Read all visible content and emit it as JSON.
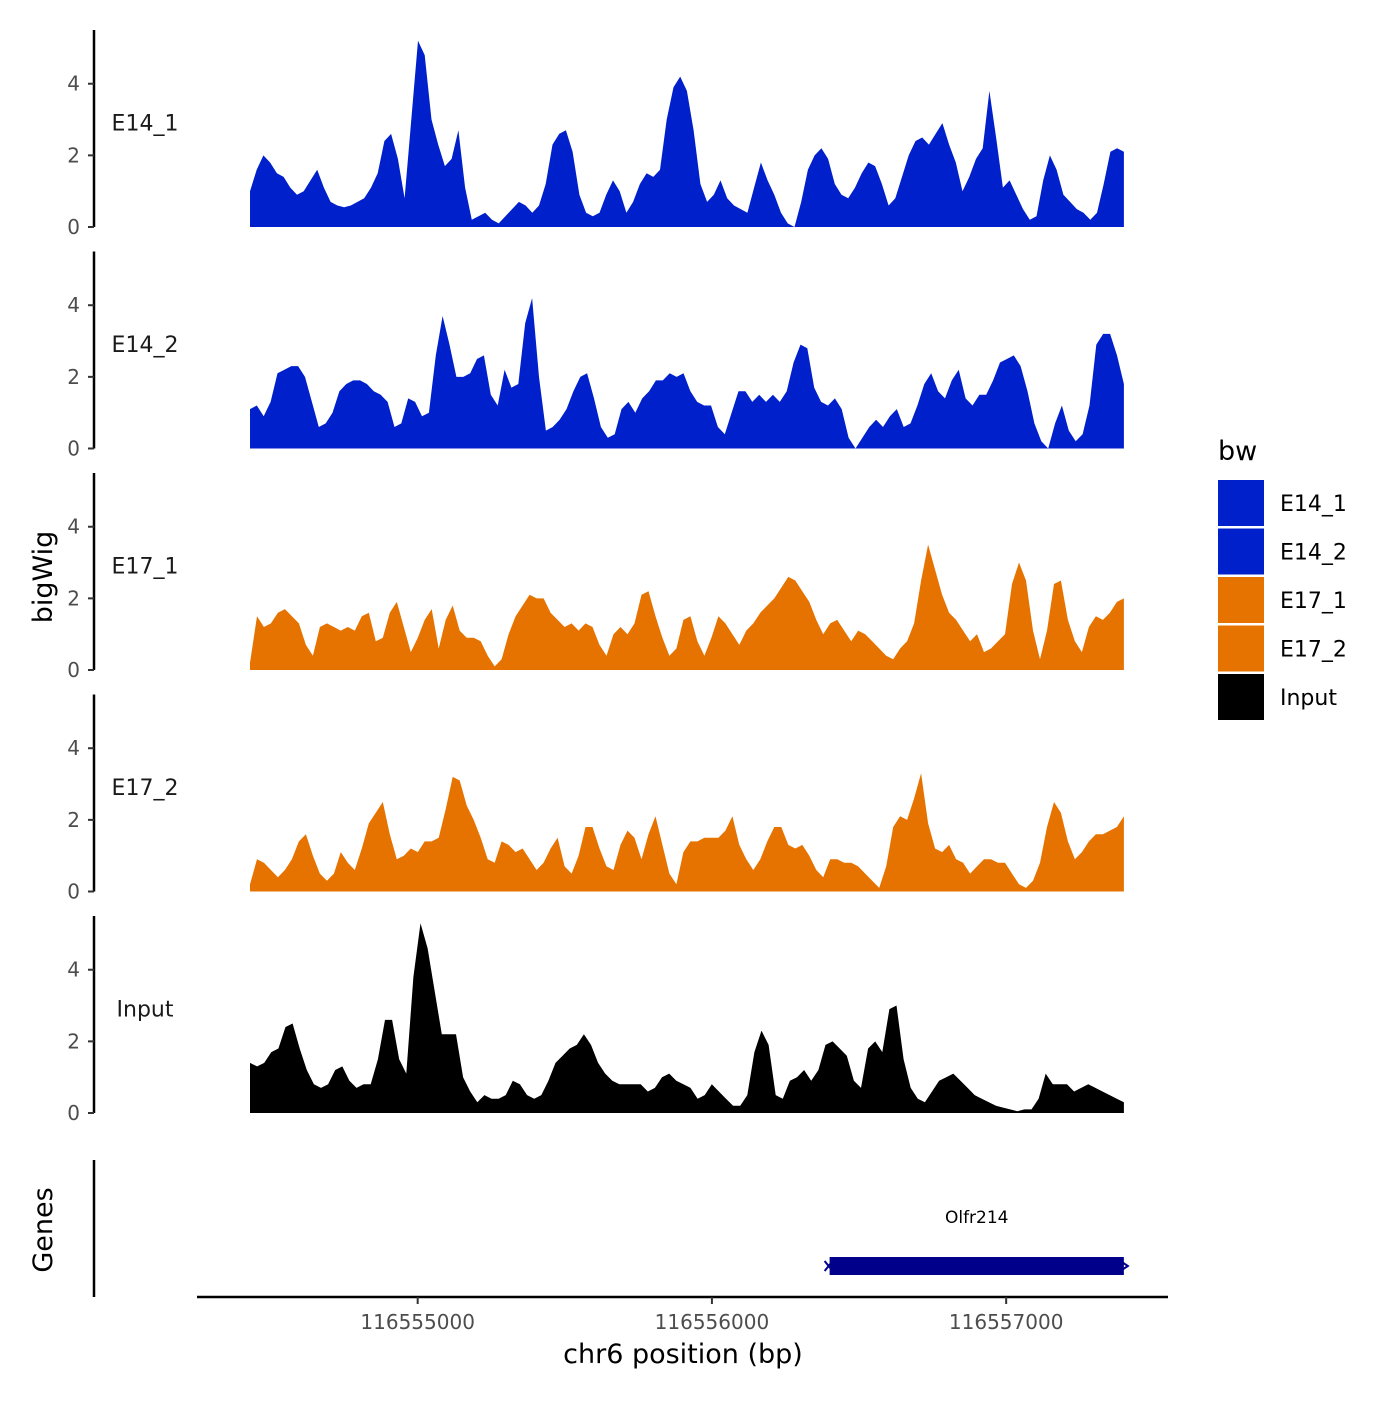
{
  "chart_data": {
    "type": "area",
    "title": "",
    "ylabel": "bigWig",
    "xlabel": "chr6 position (bp)",
    "genes_panel_label": "Genes",
    "xlim": [
      116554250,
      116557550
    ],
    "ylim": [
      0,
      5.5
    ],
    "x_ticks": [
      116555000,
      116556000,
      116557000
    ],
    "x_tick_labels": [
      "116555000",
      "116556000",
      "116557000"
    ],
    "y_ticks": [
      0,
      2,
      4
    ],
    "y_tick_labels": [
      "0",
      "2",
      "4"
    ],
    "region_start": 116554430,
    "region_end": 116557400,
    "legend": {
      "title": "bw",
      "items": [
        {
          "label": "E14_1",
          "color": "#0020CC"
        },
        {
          "label": "E14_2",
          "color": "#0020CC"
        },
        {
          "label": "E17_1",
          "color": "#E67300"
        },
        {
          "label": "E17_2",
          "color": "#E67300"
        },
        {
          "label": "Input",
          "color": "#000000"
        }
      ]
    },
    "series": [
      {
        "name": "E14_1",
        "label": "E14_1",
        "color": "#0020CC",
        "values": [
          1.0,
          1.6,
          2.0,
          1.8,
          1.5,
          1.4,
          1.1,
          0.9,
          1.0,
          1.3,
          1.6,
          1.1,
          0.7,
          0.6,
          0.55,
          0.6,
          0.7,
          0.8,
          1.1,
          1.5,
          2.4,
          2.6,
          1.9,
          0.8,
          3.0,
          5.2,
          4.8,
          3.0,
          2.3,
          1.7,
          1.9,
          2.7,
          1.1,
          0.2,
          0.3,
          0.4,
          0.2,
          0.1,
          0.3,
          0.5,
          0.7,
          0.6,
          0.4,
          0.6,
          1.2,
          2.3,
          2.6,
          2.7,
          2.1,
          0.9,
          0.4,
          0.3,
          0.4,
          0.9,
          1.3,
          1.0,
          0.4,
          0.7,
          1.2,
          1.5,
          1.4,
          1.6,
          3.0,
          3.9,
          4.2,
          3.8,
          2.7,
          1.2,
          0.7,
          0.9,
          1.3,
          0.8,
          0.6,
          0.5,
          0.4,
          1.1,
          1.8,
          1.3,
          0.9,
          0.4,
          0.1,
          0.0,
          0.7,
          1.6,
          2.0,
          2.2,
          1.9,
          1.2,
          0.9,
          0.8,
          1.1,
          1.5,
          1.8,
          1.7,
          1.2,
          0.6,
          0.8,
          1.4,
          2.0,
          2.4,
          2.5,
          2.3,
          2.6,
          2.9,
          2.3,
          1.8,
          1.0,
          1.4,
          1.9,
          2.2,
          3.8,
          2.5,
          1.1,
          1.3,
          0.9,
          0.5,
          0.2,
          0.3,
          1.3,
          2.0,
          1.6,
          0.9,
          0.7,
          0.5,
          0.4,
          0.2,
          0.4,
          1.2,
          2.1,
          2.2,
          2.1
        ]
      },
      {
        "name": "E14_2",
        "label": "E14_2",
        "color": "#0020CC",
        "values": [
          1.1,
          1.2,
          0.9,
          1.3,
          2.1,
          2.2,
          2.3,
          2.3,
          2.0,
          1.3,
          0.6,
          0.7,
          1.0,
          1.6,
          1.8,
          1.9,
          1.9,
          1.8,
          1.6,
          1.5,
          1.3,
          0.6,
          0.7,
          1.4,
          1.3,
          0.9,
          1.0,
          2.6,
          3.7,
          2.9,
          2.0,
          2.0,
          2.1,
          2.5,
          2.6,
          1.5,
          1.2,
          2.2,
          1.7,
          1.8,
          3.5,
          4.2,
          2.0,
          0.5,
          0.6,
          0.8,
          1.1,
          1.6,
          2.0,
          2.1,
          1.4,
          0.6,
          0.3,
          0.4,
          1.1,
          1.3,
          1.0,
          1.4,
          1.6,
          1.9,
          1.9,
          2.1,
          2.0,
          2.1,
          1.6,
          1.3,
          1.2,
          1.2,
          0.6,
          0.4,
          1.0,
          1.6,
          1.6,
          1.3,
          1.5,
          1.3,
          1.5,
          1.3,
          1.6,
          2.4,
          2.9,
          2.8,
          1.7,
          1.3,
          1.2,
          1.4,
          1.1,
          0.3,
          0.0,
          0.3,
          0.6,
          0.8,
          0.6,
          0.9,
          1.1,
          0.6,
          0.7,
          1.2,
          1.8,
          2.1,
          1.6,
          1.4,
          1.9,
          2.2,
          1.4,
          1.2,
          1.5,
          1.5,
          1.9,
          2.4,
          2.5,
          2.6,
          2.3,
          1.6,
          0.7,
          0.2,
          0.0,
          0.7,
          1.2,
          0.5,
          0.2,
          0.4,
          1.2,
          2.9,
          3.2,
          3.2,
          2.6,
          1.8
        ]
      },
      {
        "name": "E17_1",
        "label": "E17_1",
        "color": "#E67300",
        "values": [
          0.2,
          1.5,
          1.2,
          1.3,
          1.6,
          1.7,
          1.5,
          1.3,
          0.7,
          0.4,
          1.2,
          1.3,
          1.2,
          1.1,
          1.2,
          1.1,
          1.5,
          1.6,
          0.8,
          0.9,
          1.6,
          1.9,
          1.2,
          0.5,
          0.9,
          1.4,
          1.7,
          0.6,
          1.4,
          1.8,
          1.1,
          0.9,
          0.9,
          0.8,
          0.4,
          0.1,
          0.3,
          1.0,
          1.5,
          1.8,
          2.1,
          2.0,
          2.0,
          1.6,
          1.4,
          1.2,
          1.3,
          1.1,
          1.3,
          1.2,
          0.7,
          0.4,
          1.0,
          1.2,
          1.0,
          1.3,
          2.1,
          2.2,
          1.5,
          0.9,
          0.4,
          0.6,
          1.4,
          1.5,
          0.8,
          0.4,
          0.9,
          1.5,
          1.3,
          1.0,
          0.7,
          1.1,
          1.3,
          1.6,
          1.8,
          2.0,
          2.3,
          2.6,
          2.5,
          2.2,
          1.9,
          1.4,
          1.0,
          1.3,
          1.4,
          1.1,
          0.8,
          1.1,
          1.0,
          0.8,
          0.6,
          0.4,
          0.3,
          0.6,
          0.8,
          1.3,
          2.5,
          3.5,
          2.8,
          2.1,
          1.6,
          1.4,
          1.1,
          0.8,
          1.0,
          0.5,
          0.6,
          0.8,
          1.0,
          2.4,
          3.0,
          2.5,
          1.1,
          0.3,
          1.1,
          2.4,
          2.5,
          1.4,
          0.8,
          0.5,
          1.2,
          1.5,
          1.4,
          1.6,
          1.9,
          2.0
        ]
      },
      {
        "name": "E17_2",
        "label": "E17_2",
        "color": "#E67300",
        "values": [
          0.2,
          0.9,
          0.8,
          0.6,
          0.4,
          0.6,
          0.9,
          1.4,
          1.6,
          1.0,
          0.5,
          0.3,
          0.5,
          1.1,
          0.8,
          0.6,
          1.2,
          1.9,
          2.2,
          2.5,
          1.6,
          0.9,
          1.0,
          1.2,
          1.1,
          1.4,
          1.4,
          1.5,
          2.3,
          3.2,
          3.1,
          2.4,
          2.0,
          1.5,
          0.9,
          0.8,
          1.4,
          1.3,
          1.1,
          1.2,
          0.9,
          0.6,
          0.8,
          1.2,
          1.5,
          0.7,
          0.5,
          1.0,
          1.8,
          1.8,
          1.2,
          0.7,
          0.6,
          1.3,
          1.7,
          1.5,
          0.9,
          1.6,
          2.1,
          1.3,
          0.5,
          0.2,
          1.1,
          1.4,
          1.4,
          1.5,
          1.5,
          1.5,
          1.7,
          2.1,
          1.3,
          0.9,
          0.6,
          0.9,
          1.4,
          1.8,
          1.8,
          1.3,
          1.2,
          1.3,
          1.0,
          0.6,
          0.4,
          0.9,
          0.9,
          0.8,
          0.8,
          0.7,
          0.5,
          0.3,
          0.1,
          0.7,
          1.8,
          2.1,
          2.0,
          2.6,
          3.3,
          1.9,
          1.2,
          1.1,
          1.3,
          0.9,
          0.8,
          0.5,
          0.7,
          0.9,
          0.9,
          0.8,
          0.8,
          0.5,
          0.2,
          0.1,
          0.3,
          0.8,
          1.8,
          2.5,
          2.2,
          1.4,
          0.9,
          1.1,
          1.4,
          1.6,
          1.6,
          1.7,
          1.8,
          2.1
        ]
      },
      {
        "name": "Input",
        "label": "Input",
        "color": "#000000",
        "values": [
          1.4,
          1.3,
          1.4,
          1.7,
          1.8,
          2.4,
          2.5,
          1.8,
          1.2,
          0.8,
          0.7,
          0.8,
          1.2,
          1.3,
          0.9,
          0.7,
          0.8,
          0.8,
          1.5,
          2.6,
          2.6,
          1.5,
          1.1,
          3.8,
          5.3,
          4.6,
          3.4,
          2.2,
          2.2,
          2.2,
          1.0,
          0.6,
          0.3,
          0.5,
          0.4,
          0.4,
          0.5,
          0.9,
          0.8,
          0.5,
          0.4,
          0.5,
          0.9,
          1.4,
          1.6,
          1.8,
          1.9,
          2.2,
          1.9,
          1.4,
          1.1,
          0.9,
          0.8,
          0.8,
          0.8,
          0.8,
          0.6,
          0.7,
          1.0,
          1.1,
          0.9,
          0.8,
          0.7,
          0.4,
          0.5,
          0.8,
          0.6,
          0.4,
          0.2,
          0.2,
          0.5,
          1.7,
          2.3,
          1.9,
          0.5,
          0.4,
          0.9,
          1.0,
          1.2,
          0.9,
          1.2,
          1.9,
          2.0,
          1.8,
          1.6,
          0.9,
          0.7,
          1.8,
          2.0,
          1.7,
          2.9,
          3.0,
          1.5,
          0.7,
          0.4,
          0.3,
          0.6,
          0.9,
          1.0,
          1.1,
          0.9,
          0.7,
          0.5,
          0.4,
          0.3,
          0.2,
          0.15,
          0.1,
          0.05,
          0.1,
          0.1,
          0.4,
          1.1,
          0.8,
          0.8,
          0.8,
          0.6,
          0.7,
          0.8,
          0.7,
          0.6,
          0.5,
          0.4,
          0.3
        ]
      }
    ],
    "genes": [
      {
        "name": "Olfr214",
        "start": 116556400,
        "end": 116557400,
        "strand": "+"
      }
    ]
  }
}
